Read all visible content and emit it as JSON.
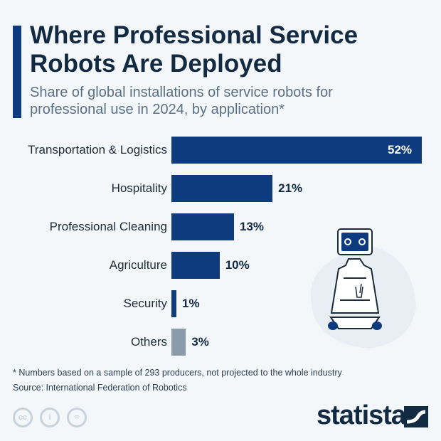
{
  "title": "Where Professional Service Robots Are Deployed",
  "subtitle": "Share of global installations of service robots for professional use in 2024, by application*",
  "chart_data": {
    "type": "bar",
    "orientation": "horizontal",
    "unit": "%",
    "categories": [
      "Transportation & Logistics",
      "Hospitality",
      "Professional Cleaning",
      "Agriculture",
      "Security",
      "Others"
    ],
    "values": [
      52,
      21,
      13,
      10,
      1,
      3
    ],
    "labels": [
      "52%",
      "21%",
      "13%",
      "10%",
      "1%",
      "3%"
    ],
    "colors": [
      "#0e3b7e",
      "#0e3b7e",
      "#0e3b7e",
      "#0e3b7e",
      "#0e3b7e",
      "#8a9bab"
    ]
  },
  "footnote": "* Numbers based on a sample of 293 producers, not projected to the whole industry",
  "source": "Source: International Federation of Robotics",
  "brand": "statista",
  "license_icons": [
    "cc-icon",
    "attribution-icon",
    "no-derivatives-icon"
  ]
}
